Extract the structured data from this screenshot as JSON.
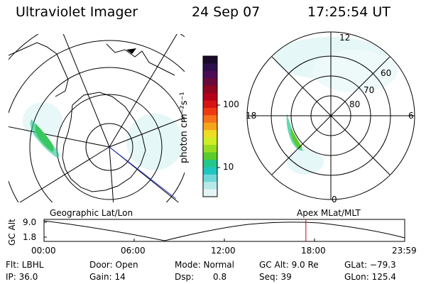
{
  "header": {
    "instrument": "Ultraviolet Imager",
    "date": "24 Sep 07",
    "time": "17:25:54 UT"
  },
  "colorbar": {
    "label": "photon cm⁻²s⁻¹",
    "ticks": [
      "100",
      "10"
    ],
    "colors": [
      "#1a0a2a",
      "#2e0e4a",
      "#4a0d55",
      "#6a0a3a",
      "#8e0622",
      "#b40018",
      "#d61414",
      "#ee3a10",
      "#f7721b",
      "#f7a41d",
      "#eedd22",
      "#ccee22",
      "#99dd22",
      "#5acb2a",
      "#22c78a",
      "#1ec6c0",
      "#6fd7d8",
      "#b6e8ea",
      "#e4f5f6"
    ]
  },
  "geo_panel": {
    "label": "Geographic Lat/Lon"
  },
  "mag_panel": {
    "label": "Apex MLat/MLT",
    "mlt_labels": [
      "12",
      "18",
      "6",
      "0"
    ],
    "lat_labels": [
      "60",
      "70",
      "80"
    ]
  },
  "timeline": {
    "axis_label": "GC Alt",
    "y_ticks": [
      "9.0",
      "1.8"
    ],
    "x_ticks": [
      "00:00",
      "06:00",
      "12:00",
      "18:00",
      "23:59"
    ],
    "current_time_fraction": 0.726,
    "marker_color": "#cc0000"
  },
  "status": {
    "flt": "Flt: LBHL",
    "ip": "IP: 36.0",
    "door": "Door: Open",
    "gain": "Gain: 14",
    "mode": "Mode: Normal",
    "dsp_label": "Dsp:",
    "dsp_value": "0.8",
    "gc_alt": "GC Alt: 9.0 Re",
    "seq": "Seq: 39",
    "glat": "GLat: −79.3",
    "glon": "GLon: 125.4"
  }
}
